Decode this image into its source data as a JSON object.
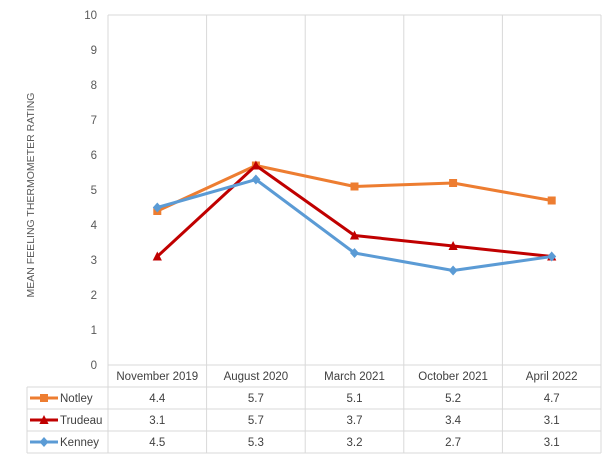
{
  "chart_data": {
    "type": "line",
    "title": "",
    "xlabel": "",
    "ylabel": "MEAN FEELING THERMOMETER RATING",
    "ylim": [
      0,
      10
    ],
    "yticks": [
      0,
      1,
      2,
      3,
      4,
      5,
      6,
      7,
      8,
      9,
      10
    ],
    "grid": "vertical",
    "legend": "data table below chart",
    "categories": [
      "November 2019",
      "August 2020",
      "March 2021",
      "October 2021",
      "April 2022"
    ],
    "series": [
      {
        "name": "Notley",
        "color": "#ed7d31",
        "marker": "square",
        "values": [
          4.4,
          5.7,
          5.1,
          5.2,
          4.7
        ]
      },
      {
        "name": "Trudeau",
        "color": "#c00000",
        "marker": "triangle",
        "values": [
          3.1,
          5.7,
          3.7,
          3.4,
          3.1
        ]
      },
      {
        "name": "Kenney",
        "color": "#5b9bd5",
        "marker": "diamond",
        "values": [
          4.5,
          5.3,
          3.2,
          2.7,
          3.1
        ]
      }
    ]
  }
}
